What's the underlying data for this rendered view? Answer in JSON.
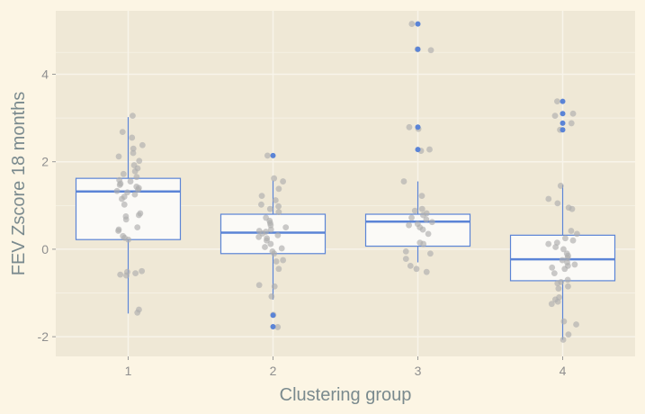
{
  "chart_data": {
    "type": "boxplot",
    "title": "",
    "xlabel": "Clustering group",
    "ylabel": "FEV Zscore 18 months",
    "categories": [
      "1",
      "2",
      "3",
      "4"
    ],
    "y_ticks": [
      -2,
      0,
      2,
      4
    ],
    "ylim": [
      -2.45,
      5.45
    ],
    "grid": true,
    "legend": "none",
    "colors": {
      "background": "#fcf5e4",
      "panel": "#efe8d6",
      "grid": "#f8f4ea",
      "box_fill": "#fbfaf7",
      "box_stroke": "#5b84d6",
      "jitter_point": "#adadad",
      "outlier_point": "#5b84d6"
    },
    "boxes": [
      {
        "group": "1",
        "q1": 0.22,
        "median": 1.32,
        "q3": 1.62,
        "whisker_low": -1.47,
        "whisker_high": 3.02,
        "outliers": []
      },
      {
        "group": "2",
        "q1": -0.1,
        "median": 0.38,
        "q3": 0.8,
        "whisker_low": -1.15,
        "whisker_high": 1.57,
        "outliers": [
          2.14,
          -1.51,
          -1.77
        ]
      },
      {
        "group": "3",
        "q1": 0.07,
        "median": 0.63,
        "q3": 0.8,
        "whisker_low": -0.3,
        "whisker_high": 1.55,
        "outliers": [
          5.15,
          4.57,
          2.79,
          2.28
        ]
      },
      {
        "group": "4",
        "q1": -0.72,
        "median": -0.23,
        "q3": 0.32,
        "whisker_low": -2.07,
        "whisker_high": 1.47,
        "outliers": [
          3.38,
          3.1,
          2.88,
          2.73
        ]
      }
    ],
    "jitter_points": [
      {
        "group": "1",
        "values": [
          3.05,
          2.68,
          2.55,
          2.38,
          2.3,
          2.2,
          2.12,
          2.02,
          1.92,
          1.85,
          1.78,
          1.72,
          1.65,
          1.58,
          1.55,
          1.5,
          1.47,
          1.43,
          1.4,
          1.36,
          1.33,
          1.3,
          1.25,
          1.2,
          1.15,
          1.02,
          0.82,
          0.78,
          0.75,
          0.68,
          0.5,
          0.45,
          0.42,
          0.3,
          0.26,
          0.22,
          -0.5,
          -0.52,
          -0.55,
          -0.58,
          -0.6,
          -1.38,
          -1.45
        ]
      },
      {
        "group": "2",
        "values": [
          2.14,
          1.62,
          1.55,
          1.38,
          1.22,
          1.12,
          1.02,
          0.98,
          0.92,
          0.85,
          0.72,
          0.65,
          0.6,
          0.55,
          0.5,
          0.45,
          0.42,
          0.4,
          0.36,
          0.32,
          0.28,
          0.25,
          0.2,
          0.12,
          0.05,
          0.02,
          -0.05,
          -0.1,
          -0.25,
          -0.28,
          -0.45,
          -0.82,
          -0.85,
          -1.08,
          -1.5,
          -1.78
        ]
      },
      {
        "group": "3",
        "values": [
          5.15,
          4.57,
          4.55,
          2.79,
          2.75,
          2.28,
          2.25,
          1.55,
          1.22,
          0.92,
          0.88,
          0.82,
          0.78,
          0.72,
          0.68,
          0.62,
          0.58,
          0.55,
          0.5,
          0.45,
          0.35,
          0.15,
          0.12,
          -0.05,
          -0.1,
          -0.22,
          -0.38,
          -0.45,
          -0.52
        ]
      },
      {
        "group": "4",
        "values": [
          3.38,
          3.1,
          3.05,
          2.88,
          2.73,
          1.45,
          1.15,
          1.05,
          0.95,
          0.92,
          0.42,
          0.35,
          0.25,
          0.2,
          0.15,
          0.12,
          0.05,
          0.0,
          -0.1,
          -0.15,
          -0.2,
          -0.25,
          -0.3,
          -0.35,
          -0.38,
          -0.42,
          -0.45,
          -0.55,
          -0.7,
          -0.75,
          -0.78,
          -0.85,
          -0.9,
          -1.1,
          -1.15,
          -1.2,
          -1.25,
          -1.65,
          -1.72,
          -1.95,
          -2.07
        ]
      }
    ]
  }
}
